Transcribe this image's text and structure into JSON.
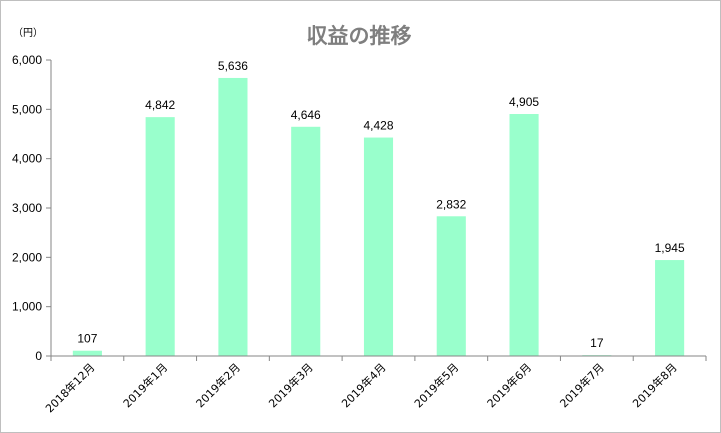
{
  "chart_data": {
    "type": "bar",
    "title": "収益の推移",
    "unit_label": "（円）",
    "categories": [
      "2018年12月",
      "2019年1月",
      "2019年2月",
      "2019年3月",
      "2019年4月",
      "2019年5月",
      "2019年6月",
      "2019年7月",
      "2019年8月"
    ],
    "values": [
      107,
      4842,
      5636,
      4646,
      4428,
      2832,
      4905,
      17,
      1945
    ],
    "value_labels": [
      "107",
      "4,842",
      "5,636",
      "4,646",
      "4,428",
      "2,832",
      "4,905",
      "17",
      "1,945"
    ],
    "ylim": [
      0,
      6000
    ],
    "yticks": [
      0,
      1000,
      2000,
      3000,
      4000,
      5000,
      6000
    ],
    "ytick_labels": [
      "0",
      "1,000",
      "2,000",
      "3,000",
      "4,000",
      "5,000",
      "6,000"
    ],
    "bar_color": "#99ffcc",
    "grid": false,
    "legend": "none"
  }
}
